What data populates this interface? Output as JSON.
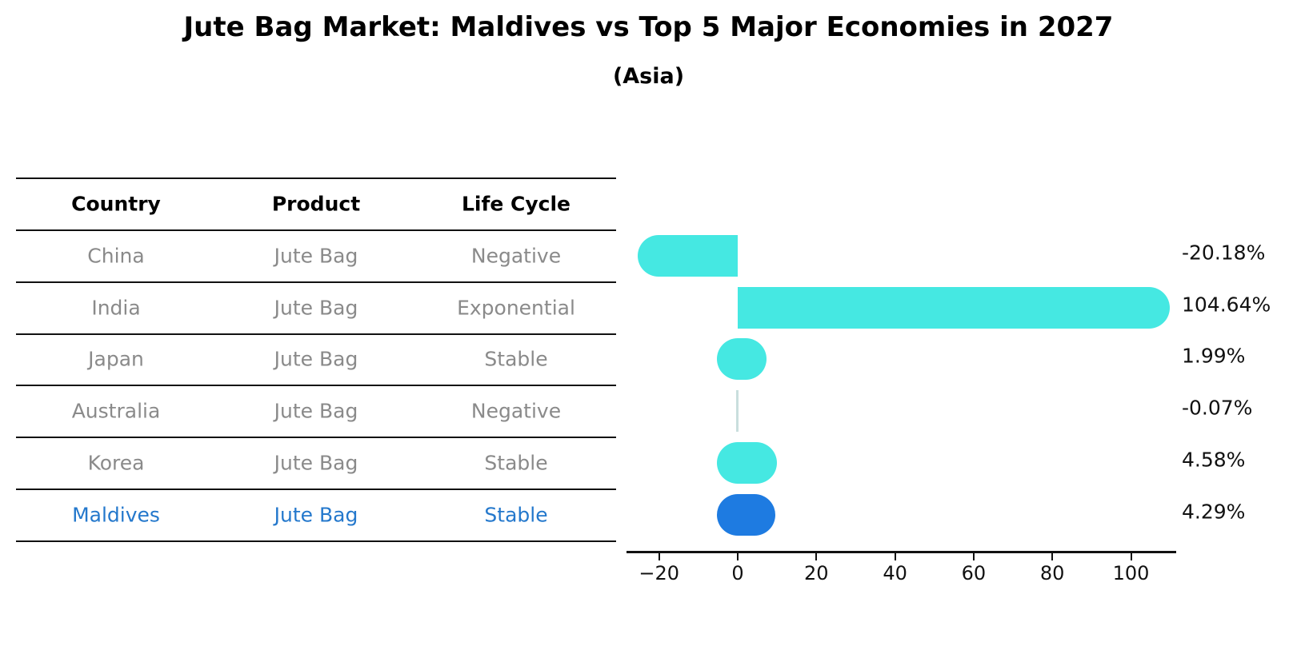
{
  "title": "Jute Bag Market: Maldives vs Top 5 Major Economies in 2027",
  "subtitle": "(Asia)",
  "table": {
    "headers": [
      "Country",
      "Product",
      "Life Cycle"
    ],
    "rows": [
      {
        "country": "China",
        "product": "Jute Bag",
        "life_cycle": "Negative",
        "highlight": false
      },
      {
        "country": "India",
        "product": "Jute Bag",
        "life_cycle": "Exponential",
        "highlight": false
      },
      {
        "country": "Japan",
        "product": "Jute Bag",
        "life_cycle": "Stable",
        "highlight": false
      },
      {
        "country": "Australia",
        "product": "Jute Bag",
        "life_cycle": "Negative",
        "highlight": false
      },
      {
        "country": "Korea",
        "product": "Jute Bag",
        "life_cycle": "Stable",
        "highlight": false
      },
      {
        "country": "Maldives",
        "product": "Jute Bag",
        "life_cycle": "Stable",
        "highlight": true
      }
    ]
  },
  "chart_data": {
    "type": "bar",
    "orientation": "horizontal",
    "title": "Jute Bag Market: Maldives vs Top 5 Major Economies in 2027",
    "subtitle": "(Asia)",
    "categories": [
      "China",
      "India",
      "Japan",
      "Australia",
      "Korea",
      "Maldives"
    ],
    "values": [
      -20.18,
      104.64,
      1.99,
      -0.07,
      4.58,
      4.29
    ],
    "value_labels": [
      "-20.18%",
      "104.64%",
      "1.99%",
      "-0.07%",
      "4.58%",
      "4.29%"
    ],
    "highlight_category": "Maldives",
    "x_ticks": [
      -20,
      0,
      20,
      40,
      60,
      80,
      100
    ],
    "x_tick_labels": [
      "−20",
      "0",
      "20",
      "40",
      "60",
      "80",
      "100"
    ],
    "xlim": [
      -29,
      112
    ],
    "grid": false,
    "legend": false,
    "bar_color_default": "#45E8E2",
    "bar_color_highlight": "#1E7BE1",
    "bar_color_faint": "#c9dedd",
    "unit": "%"
  },
  "colors": {
    "bar_cyan": "#45E8E2",
    "bar_blue": "#1E7BE1",
    "row_text_gray": "#8a8a8a",
    "highlight_text_blue": "#2478CC",
    "line_black": "#111111",
    "background": "#ffffff"
  }
}
